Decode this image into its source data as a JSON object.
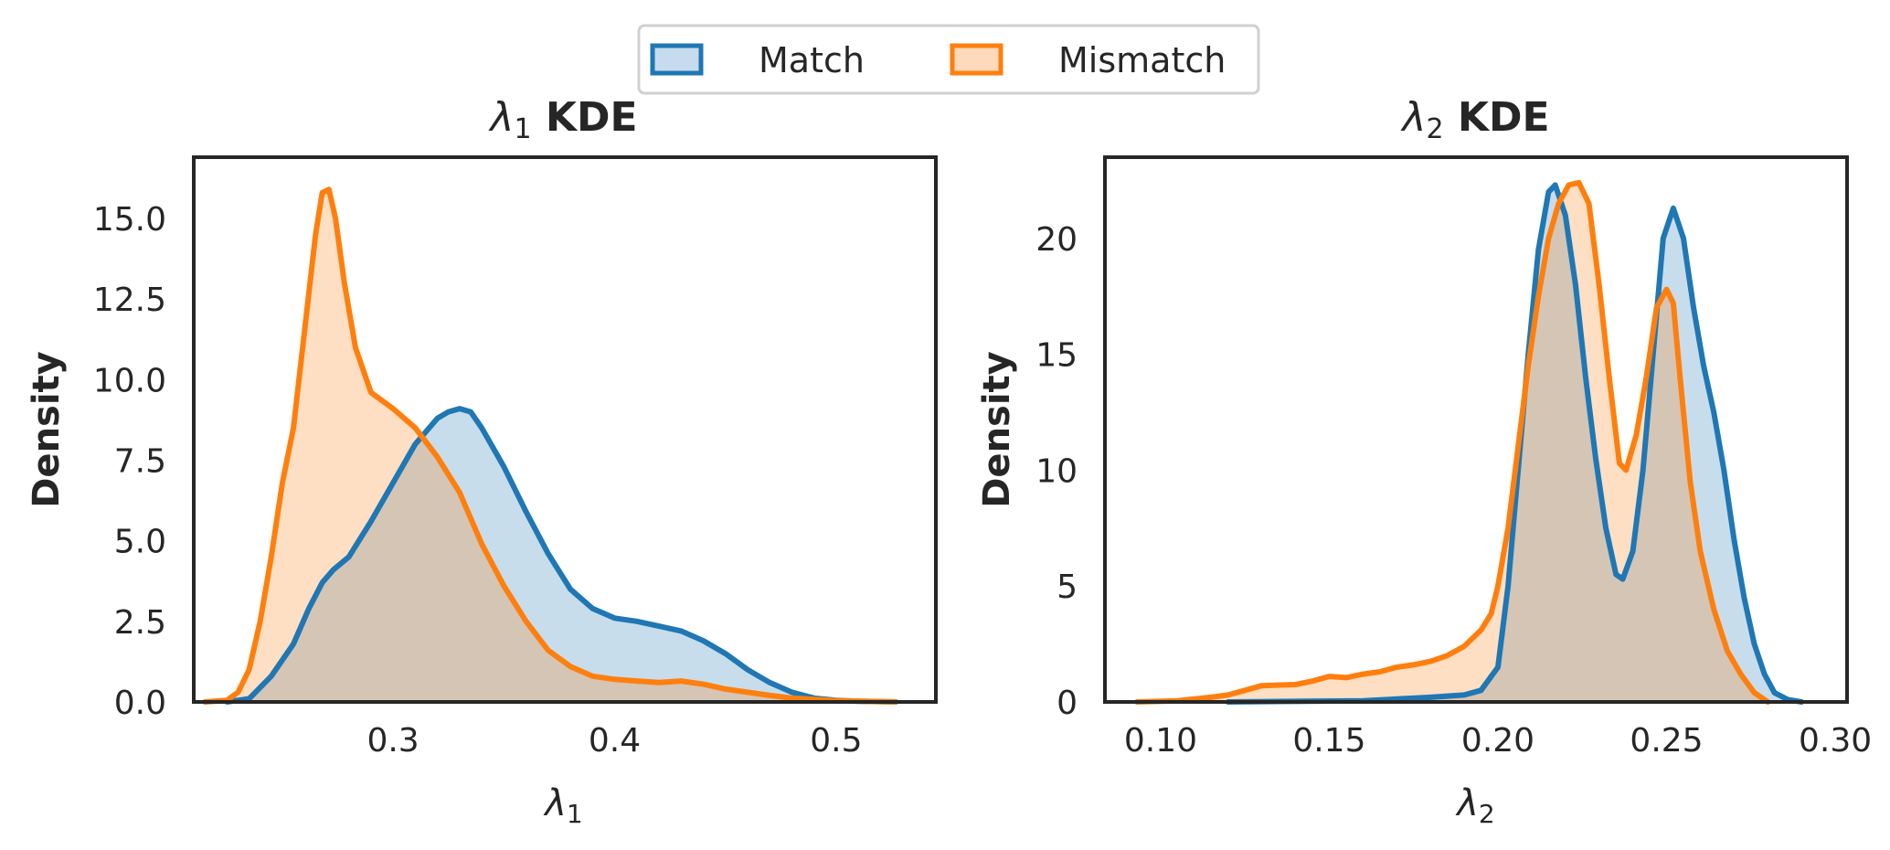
{
  "colors": {
    "match": "#1f77b4",
    "mismatch": "#ff7f0e",
    "match_fill": "#c6dbed",
    "mismatch_fill": "#ffd9bc",
    "axes": "#262626",
    "background": "#ffffff"
  },
  "legend": {
    "placement": "top-center",
    "entries": [
      "Match",
      "Mismatch"
    ]
  },
  "chart_data": [
    {
      "type": "area",
      "title_symbol": "λ",
      "title_subscript": "1",
      "title_suffix": "KDE",
      "xlabel_symbol": "λ",
      "xlabel_subscript": "1",
      "ylabel": "Density",
      "xlim": [
        0.21,
        0.545
      ],
      "ylim": [
        0,
        16.9
      ],
      "xticks": [
        0.3,
        0.4,
        0.5
      ],
      "xtick_labels": [
        "0.3",
        "0.4",
        "0.5"
      ],
      "yticks": [
        0,
        2.5,
        5,
        7.5,
        10,
        12.5,
        15
      ],
      "ytick_labels": [
        "0.0",
        "2.5",
        "5.0",
        "7.5",
        "10.0",
        "12.5",
        "15.0"
      ],
      "series": [
        {
          "name": "Match",
          "x": [
            0.225,
            0.235,
            0.245,
            0.255,
            0.262,
            0.268,
            0.273,
            0.28,
            0.29,
            0.3,
            0.31,
            0.32,
            0.325,
            0.33,
            0.335,
            0.34,
            0.345,
            0.35,
            0.36,
            0.37,
            0.38,
            0.39,
            0.4,
            0.41,
            0.42,
            0.43,
            0.44,
            0.45,
            0.46,
            0.47,
            0.48,
            0.49,
            0.5,
            0.51,
            0.527
          ],
          "y": [
            0,
            0.1,
            0.8,
            1.8,
            2.9,
            3.7,
            4.1,
            4.5,
            5.6,
            6.8,
            8.0,
            8.8,
            9.0,
            9.1,
            9.0,
            8.5,
            7.9,
            7.3,
            5.9,
            4.6,
            3.5,
            2.9,
            2.6,
            2.5,
            2.35,
            2.2,
            1.9,
            1.5,
            1.0,
            0.6,
            0.3,
            0.12,
            0.05,
            0.02,
            0
          ]
        },
        {
          "name": "Mismatch",
          "x": [
            0.215,
            0.225,
            0.23,
            0.235,
            0.24,
            0.245,
            0.25,
            0.255,
            0.26,
            0.265,
            0.268,
            0.271,
            0.274,
            0.278,
            0.283,
            0.29,
            0.3,
            0.31,
            0.32,
            0.33,
            0.34,
            0.35,
            0.36,
            0.37,
            0.38,
            0.39,
            0.4,
            0.41,
            0.42,
            0.43,
            0.44,
            0.45,
            0.46,
            0.47,
            0.48,
            0.5,
            0.52,
            0.527
          ],
          "y": [
            0,
            0.05,
            0.3,
            1.0,
            2.5,
            4.5,
            6.8,
            8.5,
            11.5,
            14.5,
            15.8,
            15.9,
            15.0,
            13.0,
            11.0,
            9.6,
            9.1,
            8.5,
            7.6,
            6.5,
            4.9,
            3.6,
            2.5,
            1.6,
            1.1,
            0.8,
            0.7,
            0.65,
            0.6,
            0.65,
            0.55,
            0.4,
            0.3,
            0.2,
            0.12,
            0.04,
            0.01,
            0
          ]
        }
      ]
    },
    {
      "type": "area",
      "title_symbol": "λ",
      "title_subscript": "2",
      "title_suffix": "KDE",
      "xlabel_symbol": "λ",
      "xlabel_subscript": "2",
      "ylabel": "Density",
      "xlim": [
        0.0835,
        0.3035
      ],
      "ylim": [
        0,
        23.5
      ],
      "xticks": [
        0.1,
        0.15,
        0.2,
        0.25,
        0.3
      ],
      "xtick_labels": [
        "0.10",
        "0.15",
        "0.20",
        "0.25",
        "0.30"
      ],
      "yticks": [
        0,
        5,
        10,
        15,
        20
      ],
      "ytick_labels": [
        "0",
        "5",
        "10",
        "15",
        "20"
      ],
      "series": [
        {
          "name": "Match",
          "x": [
            0.12,
            0.16,
            0.18,
            0.19,
            0.195,
            0.2,
            0.203,
            0.206,
            0.209,
            0.212,
            0.215,
            0.217,
            0.22,
            0.223,
            0.226,
            0.229,
            0.232,
            0.235,
            0.237,
            0.24,
            0.243,
            0.246,
            0.249,
            0.252,
            0.255,
            0.258,
            0.261,
            0.264,
            0.267,
            0.27,
            0.273,
            0.276,
            0.279,
            0.282,
            0.286,
            0.29
          ],
          "y": [
            0,
            0.05,
            0.2,
            0.3,
            0.5,
            1.5,
            5,
            10,
            15,
            19.5,
            22,
            22.3,
            21,
            18,
            14,
            10.5,
            7.5,
            5.5,
            5.3,
            6.5,
            10,
            15,
            20,
            21.3,
            20,
            17,
            14.5,
            12.5,
            10,
            7,
            4.5,
            2.5,
            1.2,
            0.4,
            0.1,
            0
          ]
        },
        {
          "name": "Mismatch",
          "x": [
            0.093,
            0.105,
            0.115,
            0.12,
            0.125,
            0.13,
            0.14,
            0.145,
            0.15,
            0.155,
            0.16,
            0.165,
            0.17,
            0.175,
            0.18,
            0.185,
            0.19,
            0.195,
            0.198,
            0.2,
            0.203,
            0.206,
            0.209,
            0.212,
            0.215,
            0.218,
            0.221,
            0.224,
            0.227,
            0.23,
            0.233,
            0.236,
            0.238,
            0.241,
            0.244,
            0.247,
            0.25,
            0.252,
            0.254,
            0.257,
            0.26,
            0.264,
            0.268,
            0.272,
            0.276,
            0.28
          ],
          "y": [
            0,
            0.05,
            0.2,
            0.3,
            0.5,
            0.7,
            0.75,
            0.9,
            1.1,
            1.05,
            1.2,
            1.3,
            1.5,
            1.6,
            1.75,
            2.0,
            2.4,
            3.1,
            3.8,
            5.0,
            7.5,
            11,
            14.5,
            17.5,
            20,
            21.5,
            22.3,
            22.4,
            21.5,
            18,
            14,
            10.3,
            10.0,
            11.5,
            14,
            17,
            17.8,
            17.2,
            14,
            9.5,
            6.5,
            4,
            2.2,
            1.2,
            0.4,
            0
          ]
        }
      ]
    }
  ]
}
